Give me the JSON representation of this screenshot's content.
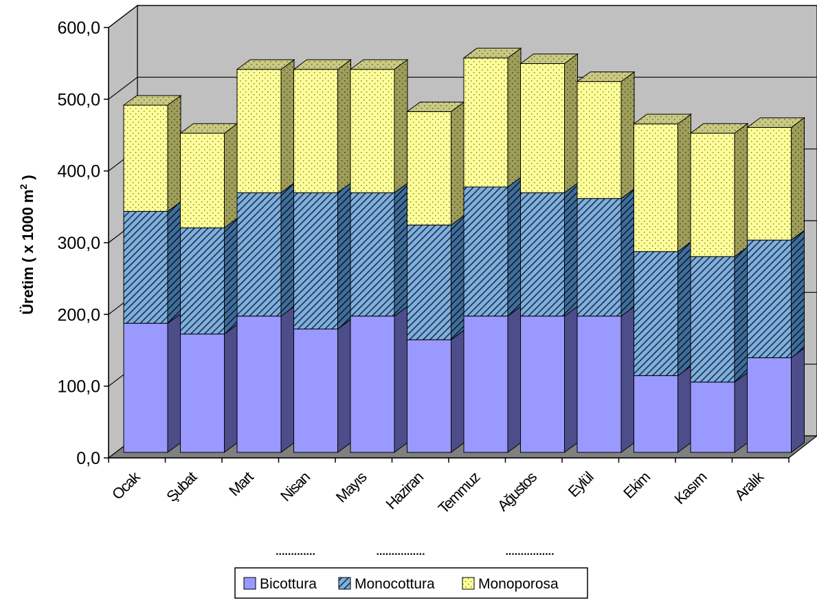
{
  "chart_data": {
    "type": "bar",
    "stacked": true,
    "three_d": true,
    "categories": [
      "Ocak",
      "Şubat",
      "Mart",
      "Nisan",
      "Mayıs",
      "Haziran",
      "Temmuz",
      "Ağustos",
      "Eylül",
      "Ekim",
      "Kasım",
      "Aralık"
    ],
    "series": [
      {
        "name": "Bicottura",
        "values": [
          180,
          165,
          190,
          172,
          190,
          157,
          190,
          190,
          190,
          107,
          98,
          132
        ]
      },
      {
        "name": "Monocottura",
        "values": [
          156,
          148,
          172,
          190,
          172,
          160,
          180,
          172,
          164,
          173,
          175,
          164
        ]
      },
      {
        "name": "Monoporosa",
        "values": [
          148,
          132,
          172,
          172,
          172,
          158,
          180,
          180,
          163,
          178,
          172,
          157
        ]
      }
    ],
    "ylabel_main": "Üretim ( x 1000 m",
    "ylabel_sup": "2",
    "ylabel_end": " )",
    "y_ticks": [
      "0,0",
      "100,0",
      "200,0",
      "300,0",
      "400,0",
      "500,0",
      "600,0"
    ],
    "ylim": [
      0,
      600
    ],
    "grid": true,
    "legend_position": "bottom",
    "colors": {
      "Bicottura": "#9999ff",
      "Monocottura": "#6fa8dc",
      "Monoporosa": "#ffff99",
      "wall": "#c0c0c0",
      "floor": "#808080"
    },
    "annotations": [
      ".............",
      "................",
      "................"
    ]
  }
}
